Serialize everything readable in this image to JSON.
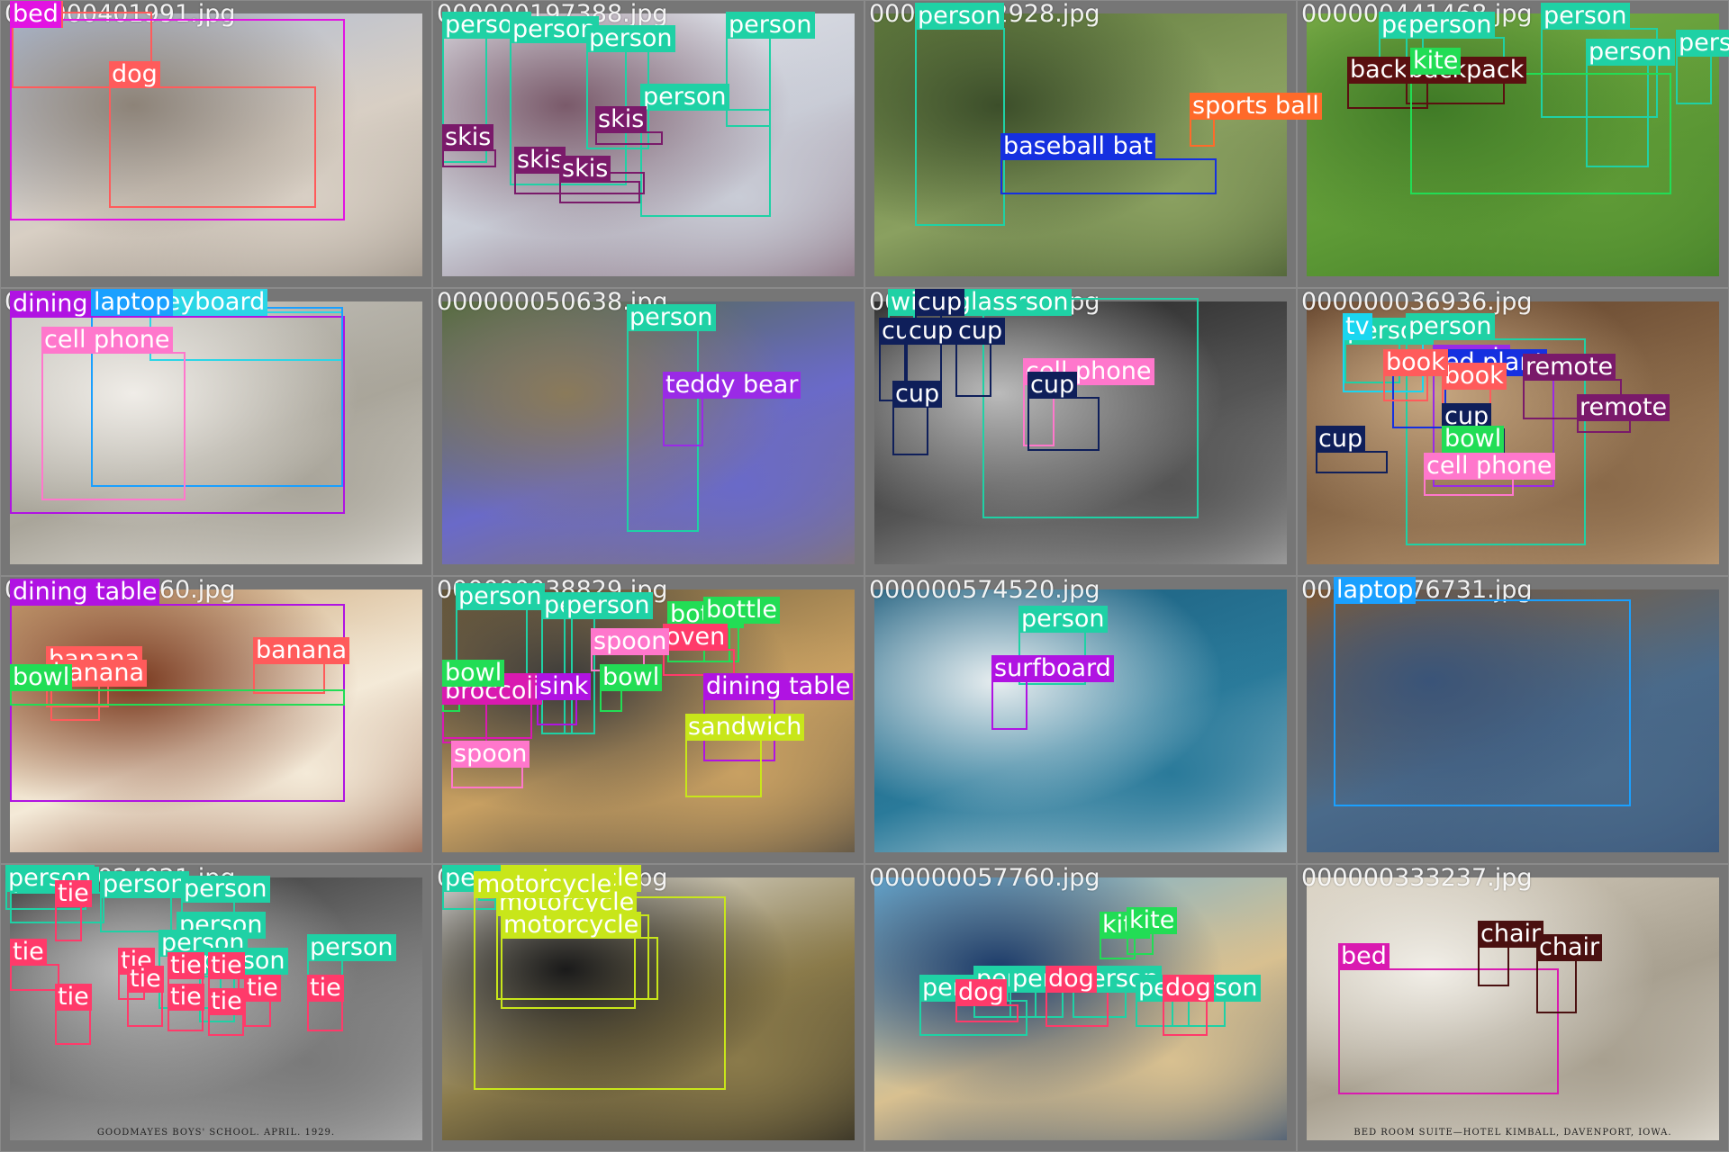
{
  "tiles": [
    {
      "filename": "000000401991.jpg",
      "scene": [
        "#a9b9d6",
        "#d8cfc4",
        "#8d8378"
      ],
      "detections": [
        {
          "label": "dog",
          "color": "#ff5b5b"
        },
        {
          "label": "dog",
          "color": "#ff5b5b"
        },
        {
          "label": "bed",
          "color": "#e213e2"
        }
      ]
    },
    {
      "filename": "000000197388.jpg",
      "scene": [
        "#e6e8ee",
        "#c9ccd6",
        "#7a5a6a"
      ],
      "detections": [
        {
          "label": "person",
          "color": "#1fd1a5"
        },
        {
          "label": "person",
          "color": "#1fd1a5"
        },
        {
          "label": "person",
          "color": "#1fd1a5"
        },
        {
          "label": "person",
          "color": "#1fd1a5"
        },
        {
          "label": "person",
          "color": "#1fd1a5"
        },
        {
          "label": "skis",
          "color": "#7a1a6a"
        },
        {
          "label": "skis",
          "color": "#7a1a6a"
        },
        {
          "label": "skis",
          "color": "#7a1a6a"
        },
        {
          "label": "skis",
          "color": "#7a1a6a"
        }
      ]
    },
    {
      "filename": "000000252928.jpg",
      "scene": [
        "#5f7a3c",
        "#8aa060",
        "#3c4e2a"
      ],
      "detections": [
        {
          "label": "person",
          "color": "#1fd1a5"
        },
        {
          "label": "baseball bat",
          "color": "#1530e0"
        },
        {
          "label": "sports ball",
          "color": "#ff6a2a"
        }
      ]
    },
    {
      "filename": "000000441468.jpg",
      "scene": [
        "#7fb04a",
        "#5e9a36",
        "#3f7a26"
      ],
      "detections": [
        {
          "label": "person",
          "color": "#1fd1a5"
        },
        {
          "label": "person",
          "color": "#1fd1a5"
        },
        {
          "label": "person",
          "color": "#1fd1a5"
        },
        {
          "label": "person",
          "color": "#1fd1a5"
        },
        {
          "label": "person",
          "color": "#1fd1a5"
        },
        {
          "label": "backpack",
          "color": "#5a1010"
        },
        {
          "label": "backpack",
          "color": "#5a1010"
        },
        {
          "label": "kite",
          "color": "#22dd55"
        }
      ]
    },
    {
      "filename": "000000182202.jpg",
      "scene": [
        "#c8c6c0",
        "#a9a59a",
        "#f0ede8"
      ],
      "detections": [
        {
          "label": "dining table",
          "color": "#b013e2"
        },
        {
          "label": "keyboard",
          "color": "#2bd6e6"
        },
        {
          "label": "laptop",
          "color": "#1aa0ff"
        },
        {
          "label": "cell phone",
          "color": "#ff77cc"
        }
      ]
    },
    {
      "filename": "000000050638.jpg",
      "scene": [
        "#4f6a3a",
        "#6a6ac8",
        "#8a7a5a"
      ],
      "detections": [
        {
          "label": "person",
          "color": "#1fd1a5"
        },
        {
          "label": "teddy bear",
          "color": "#9a2ae6"
        }
      ]
    },
    {
      "filename": "000000321245.jpg",
      "scene": [
        "#1a1a1a",
        "#555555",
        "#bbbbbb"
      ],
      "detections": [
        {
          "label": "person",
          "color": "#1fd1a5"
        },
        {
          "label": "cell phone",
          "color": "#ff77cc"
        },
        {
          "label": "wine glass",
          "color": "#1fd1a5"
        },
        {
          "label": "cup",
          "color": "#0f1f5a"
        },
        {
          "label": "cup",
          "color": "#0f1f5a"
        },
        {
          "label": "cup",
          "color": "#0f1f5a"
        },
        {
          "label": "cup",
          "color": "#0f1f5a"
        },
        {
          "label": "cup",
          "color": "#0f1f5a"
        },
        {
          "label": "cup",
          "color": "#0f1f5a"
        }
      ]
    },
    {
      "filename": "000000036936.jpg",
      "scene": [
        "#5a3a24",
        "#8a6a4a",
        "#c8a882"
      ],
      "detections": [
        {
          "label": "person",
          "color": "#1fd1a5"
        },
        {
          "label": "person",
          "color": "#1fd1a5"
        },
        {
          "label": "tv",
          "color": "#1ad6f0"
        },
        {
          "label": "couch",
          "color": "#9a2ae6"
        },
        {
          "label": "potted plant",
          "color": "#1530e0"
        },
        {
          "label": "book",
          "color": "#ff5b5b"
        },
        {
          "label": "book",
          "color": "#ff5b5b"
        },
        {
          "label": "remote",
          "color": "#7a1a6a"
        },
        {
          "label": "remote",
          "color": "#7a1a6a"
        },
        {
          "label": "cup",
          "color": "#0f1f5a"
        },
        {
          "label": "cup",
          "color": "#0f1f5a"
        },
        {
          "label": "bowl",
          "color": "#22dd55"
        },
        {
          "label": "cell phone",
          "color": "#ff77cc"
        }
      ]
    },
    {
      "filename": "000000159260.jpg",
      "scene": [
        "#c8a070",
        "#f4ead8",
        "#7a3a20"
      ],
      "detections": [
        {
          "label": "dining table",
          "color": "#b013e2"
        },
        {
          "label": "banana",
          "color": "#ff5b5b"
        },
        {
          "label": "banana",
          "color": "#ff5b5b"
        },
        {
          "label": "banana",
          "color": "#ff5b5b"
        },
        {
          "label": "bowl",
          "color": "#22dd55"
        }
      ]
    },
    {
      "filename": "000000038829.jpg",
      "scene": [
        "#6a5a3a",
        "#c8a062",
        "#3a3a3a"
      ],
      "detections": [
        {
          "label": "person",
          "color": "#1fd1a5"
        },
        {
          "label": "person",
          "color": "#1fd1a5"
        },
        {
          "label": "person",
          "color": "#1fd1a5"
        },
        {
          "label": "bottle",
          "color": "#22dd55"
        },
        {
          "label": "bottle",
          "color": "#22dd55"
        },
        {
          "label": "oven",
          "color": "#ff3a6a"
        },
        {
          "label": "spoon",
          "color": "#ff77cc"
        },
        {
          "label": "spoon",
          "color": "#ff77cc"
        },
        {
          "label": "broccoli",
          "color": "#d91ab0"
        },
        {
          "label": "broccoli",
          "color": "#d91ab0"
        },
        {
          "label": "sink",
          "color": "#b013e2"
        },
        {
          "label": "bowl",
          "color": "#22dd55"
        },
        {
          "label": "bowl",
          "color": "#22dd55"
        },
        {
          "label": "dining table",
          "color": "#b013e2"
        },
        {
          "label": "sandwich",
          "color": "#c8e61a"
        }
      ]
    },
    {
      "filename": "000000574520.jpg",
      "scene": [
        "#1a5a7a",
        "#2a7a9a",
        "#e8eef0"
      ],
      "detections": [
        {
          "label": "person",
          "color": "#1fd1a5"
        },
        {
          "label": "surfboard",
          "color": "#b013e2"
        }
      ]
    },
    {
      "filename": "000000476731.jpg",
      "scene": [
        "#8a5a2a",
        "#4a6a8a",
        "#3a5478"
      ],
      "detections": [
        {
          "label": "laptop",
          "color": "#1aa0ff"
        }
      ]
    },
    {
      "filename": "000000024021.jpg",
      "scene": [
        "#2a2a2a",
        "#7a7a7a",
        "#bcbcbc"
      ],
      "detections": [
        {
          "label": "person",
          "color": "#1fd1a5"
        },
        {
          "label": "person",
          "color": "#1fd1a5"
        },
        {
          "label": "person",
          "color": "#1fd1a5"
        },
        {
          "label": "person",
          "color": "#1fd1a5"
        },
        {
          "label": "person",
          "color": "#1fd1a5"
        },
        {
          "label": "person",
          "color": "#1fd1a5"
        },
        {
          "label": "person",
          "color": "#1fd1a5"
        },
        {
          "label": "person",
          "color": "#1fd1a5"
        },
        {
          "label": "tie",
          "color": "#ff3a6a"
        },
        {
          "label": "tie",
          "color": "#ff3a6a"
        },
        {
          "label": "tie",
          "color": "#ff3a6a"
        },
        {
          "label": "tie",
          "color": "#ff3a6a"
        },
        {
          "label": "tie",
          "color": "#ff3a6a"
        },
        {
          "label": "tie",
          "color": "#ff3a6a"
        },
        {
          "label": "tie",
          "color": "#ff3a6a"
        },
        {
          "label": "tie",
          "color": "#ff3a6a"
        },
        {
          "label": "tie",
          "color": "#ff3a6a"
        },
        {
          "label": "tie",
          "color": "#ff3a6a"
        },
        {
          "label": "tie",
          "color": "#ff3a6a"
        }
      ],
      "caption": "GOODMAYES BOYS' SCHOOL.   APRIL. 1929."
    },
    {
      "filename": "000000012345.jpg",
      "scene": [
        "#f2f2f2",
        "#8a7a4a",
        "#1a1a1a"
      ],
      "detections": [
        {
          "label": "person",
          "color": "#1fd1a5"
        },
        {
          "label": "person",
          "color": "#1fd1a5"
        },
        {
          "label": "motorcycle",
          "color": "#c8e61a"
        },
        {
          "label": "motorcycle",
          "color": "#c8e61a"
        },
        {
          "label": "motorcycle",
          "color": "#c8e61a"
        },
        {
          "label": "motorcycle",
          "color": "#c8e61a"
        }
      ]
    },
    {
      "filename": "000000057760.jpg",
      "scene": [
        "#6ab0d8",
        "#d8c090",
        "#1a3a6a"
      ],
      "detections": [
        {
          "label": "kite",
          "color": "#22dd55"
        },
        {
          "label": "kite",
          "color": "#22dd55"
        },
        {
          "label": "person",
          "color": "#1fd1a5"
        },
        {
          "label": "person",
          "color": "#1fd1a5"
        },
        {
          "label": "person",
          "color": "#1fd1a5"
        },
        {
          "label": "person",
          "color": "#1fd1a5"
        },
        {
          "label": "person",
          "color": "#1fd1a5"
        },
        {
          "label": "person",
          "color": "#1fd1a5"
        },
        {
          "label": "dog",
          "color": "#ff3a6a"
        },
        {
          "label": "dog",
          "color": "#ff3a6a"
        },
        {
          "label": "dog",
          "color": "#ff3a6a"
        }
      ]
    },
    {
      "filename": "000000333237.jpg",
      "scene": [
        "#d8d0c0",
        "#a8a090",
        "#f2efe8"
      ],
      "detections": [
        {
          "label": "bed",
          "color": "#d91ab0"
        },
        {
          "label": "chair",
          "color": "#4a1010"
        },
        {
          "label": "chair",
          "color": "#4a1010"
        }
      ],
      "caption": "BED ROOM SUITE—HOTEL KIMBALL, DAVENPORT, IOWA."
    }
  ]
}
